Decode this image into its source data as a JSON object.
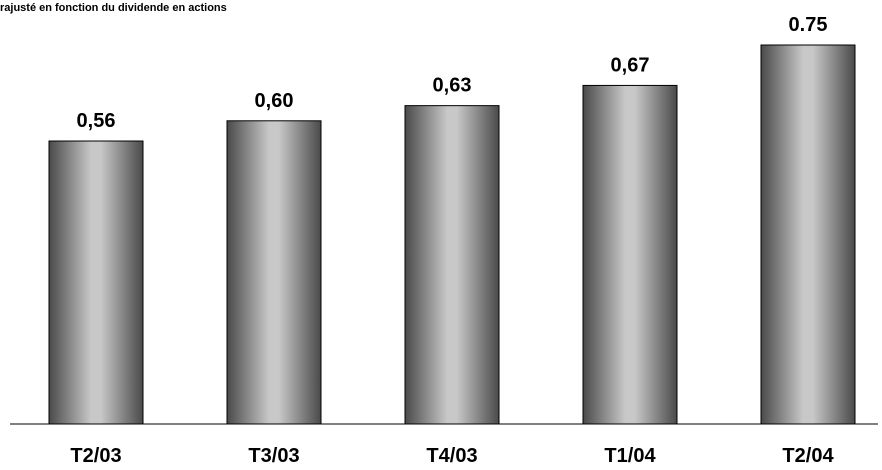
{
  "chart_data": {
    "type": "bar",
    "note": "rajusté en fonction du dividende en actions",
    "categories": [
      "T2/03",
      "T3/03",
      "T4/03",
      "T1/04",
      "T2/04"
    ],
    "values": [
      0.56,
      0.6,
      0.63,
      0.67,
      0.75
    ],
    "data_labels": [
      "0,56",
      "0,60",
      "0,63",
      "0,67",
      "0.75"
    ],
    "ylim": [
      0,
      0.75
    ],
    "grid": false,
    "legend": "none",
    "colors": {
      "bar_edge": "#4a4a4a",
      "bar_center": "#c8c8c8",
      "bar_outline": "#000000",
      "axis": "#000000",
      "text": "#000000"
    }
  }
}
